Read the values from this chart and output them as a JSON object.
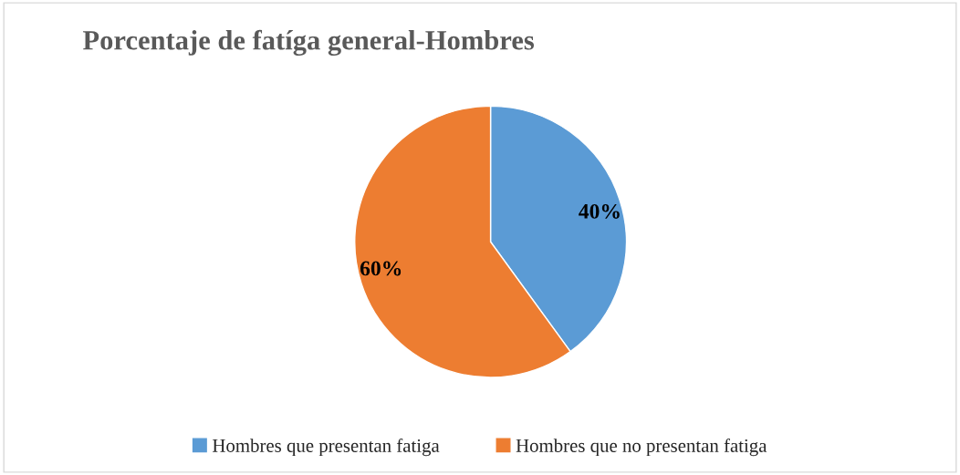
{
  "chart_data": {
    "type": "pie",
    "title": "Porcentaje de fatíga general-Hombres",
    "categories": [
      "Hombres que presentan fatiga",
      "Hombres que no presentan fatiga"
    ],
    "values": [
      40,
      60
    ],
    "colors": [
      "#5b9bd5",
      "#ed7d31"
    ],
    "value_labels": [
      "40%",
      "60%"
    ],
    "legend": "bottom"
  }
}
